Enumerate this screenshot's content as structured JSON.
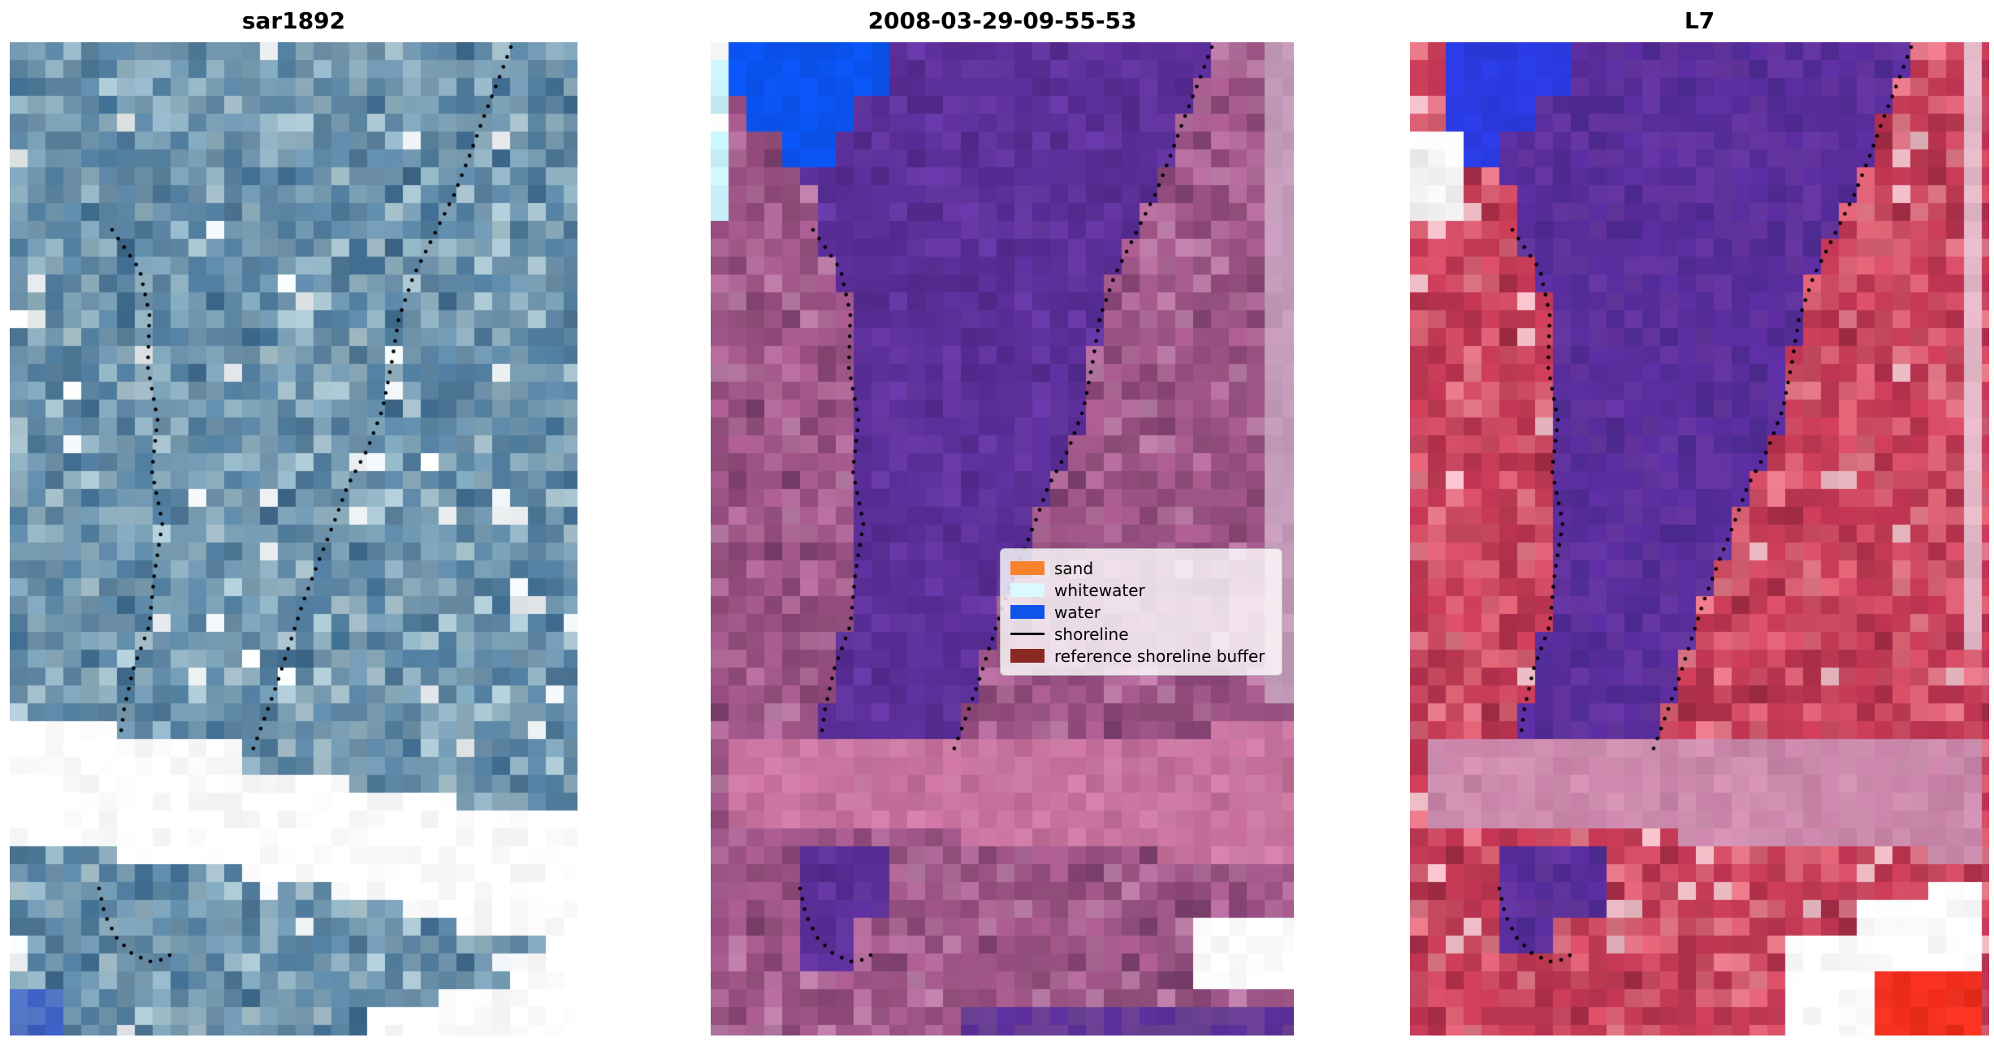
{
  "figure": {
    "background": "#ffffff"
  },
  "panels": [
    {
      "id": "sar",
      "title": "sar1892",
      "palette": {
        "base": [
          [
            "#6f94ad",
            6
          ],
          [
            "#5d86a4",
            6
          ],
          [
            "#7ba0b5",
            5
          ],
          [
            "#8fb0c0",
            4
          ],
          [
            "#4f7a9a",
            4
          ],
          [
            "#eef2f4",
            1.2
          ],
          [
            "#3f6b8e",
            1.5
          ],
          [
            "#a9c4cf",
            2
          ]
        ],
        "nodata": "#ffffff",
        "blue": "#3b5fc0"
      }
    },
    {
      "id": "s2",
      "title": "2008-03-29-09-55-53",
      "palette": {
        "base": [
          [
            "#a4598c",
            6
          ],
          [
            "#95507f",
            6
          ],
          [
            "#b06a99",
            4
          ],
          [
            "#8d4878",
            4
          ],
          [
            "#7c3f6d",
            1.5
          ],
          [
            "#b87aa4",
            2
          ]
        ],
        "channel": [
          [
            "#5c2f9a",
            6
          ],
          [
            "#532a8e",
            4
          ],
          [
            "#6637a4",
            3
          ]
        ],
        "water": "#0a53f0",
        "whitewater": "#c6f0f7",
        "band": [
          [
            "#c8739f",
            5
          ],
          [
            "#c06b97",
            3
          ],
          [
            "#cf7da7",
            3
          ]
        ],
        "strip": "#c39ab8",
        "bottom": [
          [
            "#6a3f93",
            5
          ],
          [
            "#5c2f9a",
            3
          ]
        ],
        "nodata": "#ffffff"
      }
    },
    {
      "id": "l7",
      "title": "L7",
      "palette": {
        "base": [
          [
            "#cf4b63",
            6
          ],
          [
            "#c43b55",
            6
          ],
          [
            "#d85f72",
            4
          ],
          [
            "#b93350",
            4
          ],
          [
            "#a52c46",
            1.5
          ],
          [
            "#e07585",
            2
          ],
          [
            "#eab9c2",
            1
          ]
        ],
        "channel": [
          [
            "#5a2d9e",
            6
          ],
          [
            "#63349f",
            4
          ],
          [
            "#4f2a92",
            3
          ]
        ],
        "water": "#2a3ae0",
        "light": "#f5f2f4",
        "band": [
          [
            "#cf8fb0",
            5
          ],
          [
            "#c884a8",
            4
          ]
        ],
        "strip": "#e3b7c6",
        "redblock": [
          [
            "#f93222",
            6
          ],
          [
            "#e82a18",
            4
          ]
        ],
        "nodata": "#ffffff"
      }
    }
  ],
  "legend": {
    "items": [
      {
        "label": "sand",
        "color": "#f9822c",
        "type": "patch"
      },
      {
        "label": "whitewater",
        "color": "#daf8fd",
        "type": "patch"
      },
      {
        "label": "water",
        "color": "#1053e8",
        "type": "patch"
      },
      {
        "label": "shoreline",
        "color": "#000000",
        "type": "line"
      },
      {
        "label": "reference shoreline buffer",
        "color": "#8a2822",
        "type": "patch"
      }
    ]
  },
  "shoreline": {
    "dot_color": "#000000"
  }
}
